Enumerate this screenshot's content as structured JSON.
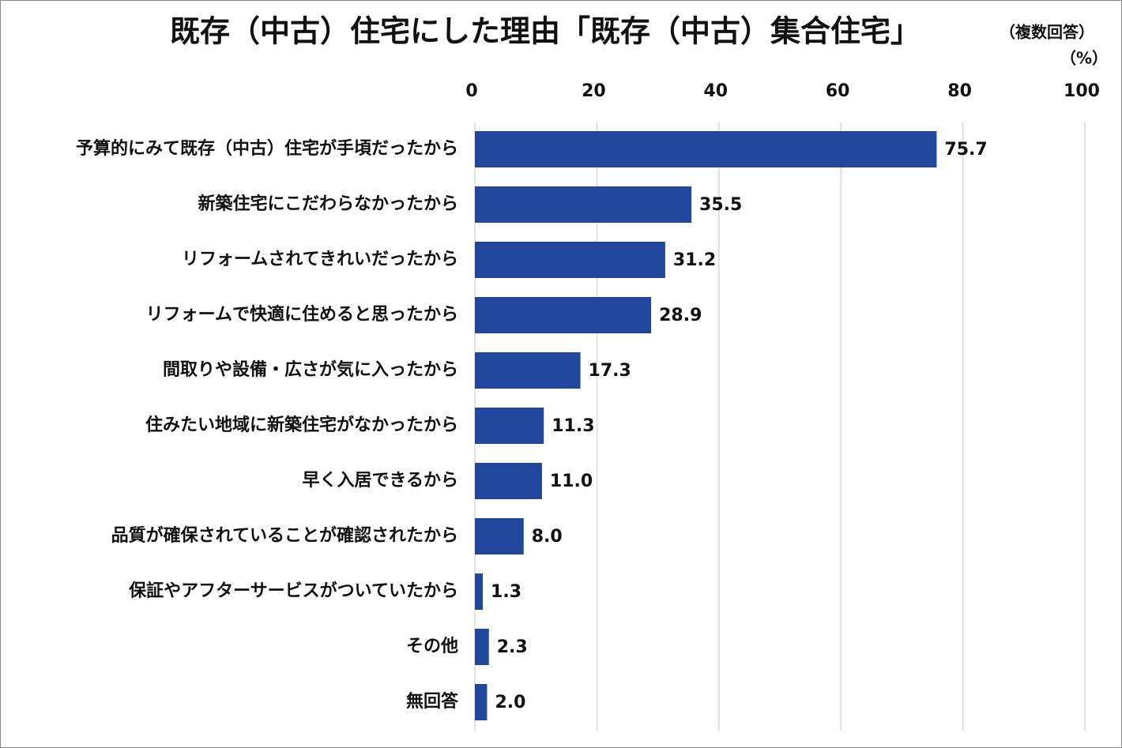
{
  "chart_data": {
    "type": "bar",
    "title": "既存（中古）住宅にした理由「既存（中古）集合住宅」",
    "subtitle": "（複数回答）",
    "unit_label": "（%）",
    "categories": [
      "予算的にみて既存（中古）住宅が手頃だったから",
      "新築住宅にこだわらなかったから",
      "リフォームされてきれいだったから",
      "リフォームで快適に住めると思ったから",
      "間取りや設備・広さが気に入ったから",
      "住みたい地域に新築住宅がなかったから",
      "早く入居できるから",
      "品質が確保されていることが確認されたから",
      "保証やアフターサービスがついていたから",
      "その他",
      "無回答"
    ],
    "values": [
      75.7,
      35.5,
      31.2,
      28.9,
      17.3,
      11.3,
      11.0,
      8.0,
      1.3,
      2.3,
      2.0
    ],
    "value_labels": [
      "75.7",
      "35.5",
      "31.2",
      "28.9",
      "17.3",
      "11.3",
      "11.0",
      "8.0",
      "1.3",
      "2.3",
      "2.0"
    ],
    "color": "#21479c",
    "xlim": [
      0,
      100
    ],
    "xticks": [
      0,
      20,
      40,
      60,
      80,
      100
    ],
    "grid": true
  }
}
